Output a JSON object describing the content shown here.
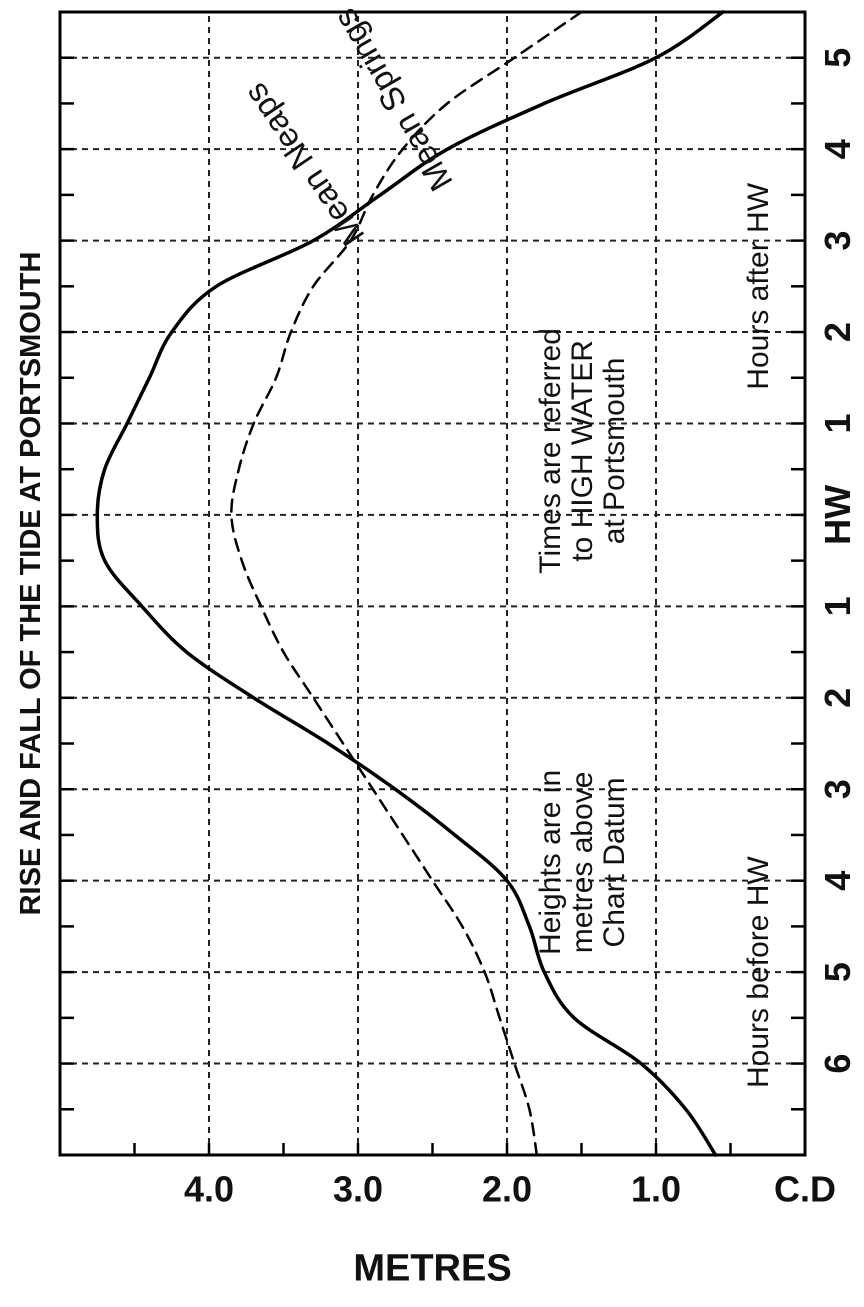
{
  "chart_data": {
    "type": "line",
    "title": "RISE AND FALL OF THE TIDE AT PORTSMOUTH",
    "ylabel": "METRES",
    "xlabel_before": "Hours before HW",
    "xlabel_after": "Hours after HW",
    "x_ticks": [
      {
        "x": -6,
        "label": "6"
      },
      {
        "x": -5,
        "label": "5"
      },
      {
        "x": -4,
        "label": "4"
      },
      {
        "x": -3,
        "label": "3"
      },
      {
        "x": -2,
        "label": "2"
      },
      {
        "x": -1,
        "label": "1"
      },
      {
        "x": 0,
        "label": "HW"
      },
      {
        "x": 1,
        "label": "1"
      },
      {
        "x": 2,
        "label": "2"
      },
      {
        "x": 3,
        "label": "3"
      },
      {
        "x": 4,
        "label": "4"
      },
      {
        "x": 5,
        "label": "5"
      }
    ],
    "y_ticks": [
      {
        "y": 0,
        "label": "C.D"
      },
      {
        "y": 1,
        "label": "1.0"
      },
      {
        "y": 2,
        "label": "2.0"
      },
      {
        "y": 3,
        "label": "3.0"
      },
      {
        "y": 4,
        "label": "4.0"
      }
    ],
    "xlim": [
      -7,
      5.5
    ],
    "ylim": [
      0,
      5
    ],
    "grid": true,
    "series": [
      {
        "name": "Mean Springs",
        "style": "solid",
        "x": [
          -7,
          -6.5,
          -6,
          -5.5,
          -5,
          -4.5,
          -4,
          -3.5,
          -3,
          -2.5,
          -2,
          -1.5,
          -1,
          -0.5,
          0,
          0.5,
          1,
          1.5,
          2,
          2.5,
          3,
          3.5,
          4,
          4.5,
          5,
          5.5
        ],
        "y": [
          0.6,
          0.8,
          1.1,
          1.55,
          1.75,
          1.85,
          2.0,
          2.35,
          2.75,
          3.2,
          3.7,
          4.15,
          4.45,
          4.7,
          4.75,
          4.7,
          4.55,
          4.4,
          4.25,
          3.95,
          3.3,
          2.85,
          2.4,
          1.75,
          1.0,
          0.55
        ]
      },
      {
        "name": "Mean Neaps",
        "style": "dashed",
        "x": [
          -7,
          -6.5,
          -6,
          -5.5,
          -5,
          -4.5,
          -4,
          -3.5,
          -3,
          -2.5,
          -2,
          -1.5,
          -1,
          -0.5,
          0,
          0.5,
          1,
          1.5,
          2,
          2.5,
          3,
          3.5,
          4,
          4.5,
          5,
          5.5
        ],
        "y": [
          1.8,
          1.85,
          1.95,
          2.05,
          2.15,
          2.3,
          2.5,
          2.7,
          2.9,
          3.1,
          3.3,
          3.5,
          3.65,
          3.78,
          3.85,
          3.8,
          3.7,
          3.55,
          3.45,
          3.3,
          3.05,
          2.9,
          2.7,
          2.4,
          1.95,
          1.5
        ]
      }
    ],
    "notes": {
      "heights": [
        "Heights are in",
        "metres above",
        "Chart Datum"
      ],
      "times": [
        "Times are referred",
        "to HIGH WATER",
        "at Portsmouth"
      ]
    }
  }
}
